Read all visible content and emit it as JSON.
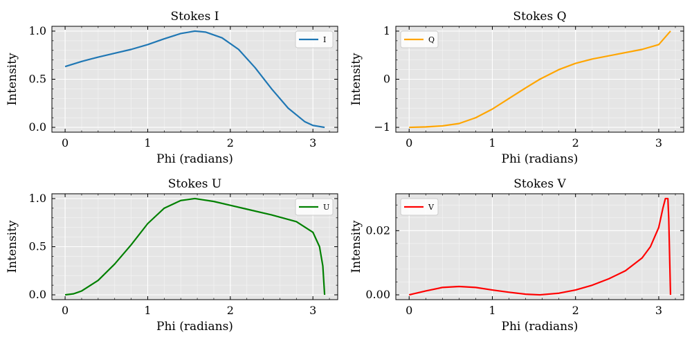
{
  "chart_data": [
    {
      "type": "line",
      "title": "Stokes I",
      "xlabel": "Phi (radians)",
      "ylabel": "Intensity",
      "xlim": [
        -0.16,
        3.3
      ],
      "ylim": [
        -0.05,
        1.05
      ],
      "xticks": [
        {
          "v": 0,
          "label": "0"
        },
        {
          "v": 1,
          "label": "1"
        },
        {
          "v": 2,
          "label": "2"
        },
        {
          "v": 3,
          "label": "3"
        }
      ],
      "yticks": [
        {
          "v": 0,
          "label": "0.0"
        },
        {
          "v": 0.5,
          "label": "0.5"
        },
        {
          "v": 1.0,
          "label": "1.0"
        }
      ],
      "grid": true,
      "legend_position": "top-right",
      "series": [
        {
          "name": "I",
          "color": "#1f77b4",
          "x": [
            0,
            0.2,
            0.4,
            0.6,
            0.8,
            1.0,
            1.2,
            1.4,
            1.5708,
            1.7,
            1.9,
            2.1,
            2.3,
            2.5,
            2.7,
            2.9,
            3.0,
            3.1416
          ],
          "y": [
            0.632,
            0.685,
            0.73,
            0.77,
            0.81,
            0.86,
            0.92,
            0.975,
            1.0,
            0.99,
            0.93,
            0.81,
            0.62,
            0.4,
            0.2,
            0.06,
            0.02,
            0.0
          ]
        }
      ]
    },
    {
      "type": "line",
      "title": "Stokes Q",
      "xlabel": "Phi (radians)",
      "ylabel": "Intensity",
      "xlim": [
        -0.16,
        3.3
      ],
      "ylim": [
        -1.1,
        1.1
      ],
      "xticks": [
        {
          "v": 0,
          "label": "0"
        },
        {
          "v": 1,
          "label": "1"
        },
        {
          "v": 2,
          "label": "2"
        },
        {
          "v": 3,
          "label": "3"
        }
      ],
      "yticks": [
        {
          "v": -1,
          "label": "−1"
        },
        {
          "v": 0,
          "label": "0"
        },
        {
          "v": 1,
          "label": "1"
        }
      ],
      "grid": true,
      "legend_position": "top-left",
      "series": [
        {
          "name": "Q",
          "color": "#ffa500",
          "x": [
            0,
            0.2,
            0.4,
            0.6,
            0.8,
            1.0,
            1.2,
            1.4,
            1.5708,
            1.8,
            2.0,
            2.2,
            2.5,
            2.8,
            3.0,
            3.1416
          ],
          "y": [
            -1.0,
            -0.99,
            -0.97,
            -0.92,
            -0.8,
            -0.62,
            -0.4,
            -0.18,
            0.0,
            0.2,
            0.33,
            0.42,
            0.52,
            0.62,
            0.72,
            1.0
          ]
        }
      ]
    },
    {
      "type": "line",
      "title": "Stokes U",
      "xlabel": "Phi (radians)",
      "ylabel": "Intensity",
      "xlim": [
        -0.16,
        3.3
      ],
      "ylim": [
        -0.05,
        1.05
      ],
      "xticks": [
        {
          "v": 0,
          "label": "0"
        },
        {
          "v": 1,
          "label": "1"
        },
        {
          "v": 2,
          "label": "2"
        },
        {
          "v": 3,
          "label": "3"
        }
      ],
      "yticks": [
        {
          "v": 0,
          "label": "0.0"
        },
        {
          "v": 0.5,
          "label": "0.5"
        },
        {
          "v": 1.0,
          "label": "1.0"
        }
      ],
      "grid": true,
      "legend_position": "top-right",
      "series": [
        {
          "name": "U",
          "color": "#008000",
          "x": [
            0,
            0.1,
            0.2,
            0.4,
            0.6,
            0.8,
            1.0,
            1.2,
            1.4,
            1.5708,
            1.8,
            2.0,
            2.2,
            2.5,
            2.8,
            3.0,
            3.08,
            3.12,
            3.1416
          ],
          "y": [
            0.0,
            0.01,
            0.04,
            0.15,
            0.32,
            0.52,
            0.74,
            0.9,
            0.98,
            1.0,
            0.97,
            0.93,
            0.89,
            0.83,
            0.76,
            0.65,
            0.5,
            0.3,
            0.0
          ]
        }
      ]
    },
    {
      "type": "line",
      "title": "Stokes V",
      "xlabel": "Phi (radians)",
      "ylabel": "Intensity",
      "xlim": [
        -0.16,
        3.3
      ],
      "ylim": [
        -0.0015,
        0.0315
      ],
      "xticks": [
        {
          "v": 0,
          "label": "0"
        },
        {
          "v": 1,
          "label": "1"
        },
        {
          "v": 2,
          "label": "2"
        },
        {
          "v": 3,
          "label": "3"
        }
      ],
      "yticks": [
        {
          "v": 0,
          "label": "0.00"
        },
        {
          "v": 0.02,
          "label": "0.02"
        }
      ],
      "grid": true,
      "legend_position": "top-left",
      "series": [
        {
          "name": "V",
          "color": "#ff0000",
          "x": [
            0,
            0.2,
            0.4,
            0.6,
            0.8,
            1.0,
            1.2,
            1.4,
            1.5708,
            1.8,
            2.0,
            2.2,
            2.4,
            2.6,
            2.8,
            2.9,
            3.0,
            3.05,
            3.08,
            3.11,
            3.12,
            3.1416
          ],
          "y": [
            0.0,
            0.0012,
            0.0023,
            0.0026,
            0.0023,
            0.0015,
            0.0008,
            0.0002,
            0.0,
            0.0005,
            0.0015,
            0.003,
            0.005,
            0.0075,
            0.0115,
            0.015,
            0.021,
            0.027,
            0.03,
            0.03,
            0.024,
            0.0
          ]
        }
      ]
    }
  ]
}
